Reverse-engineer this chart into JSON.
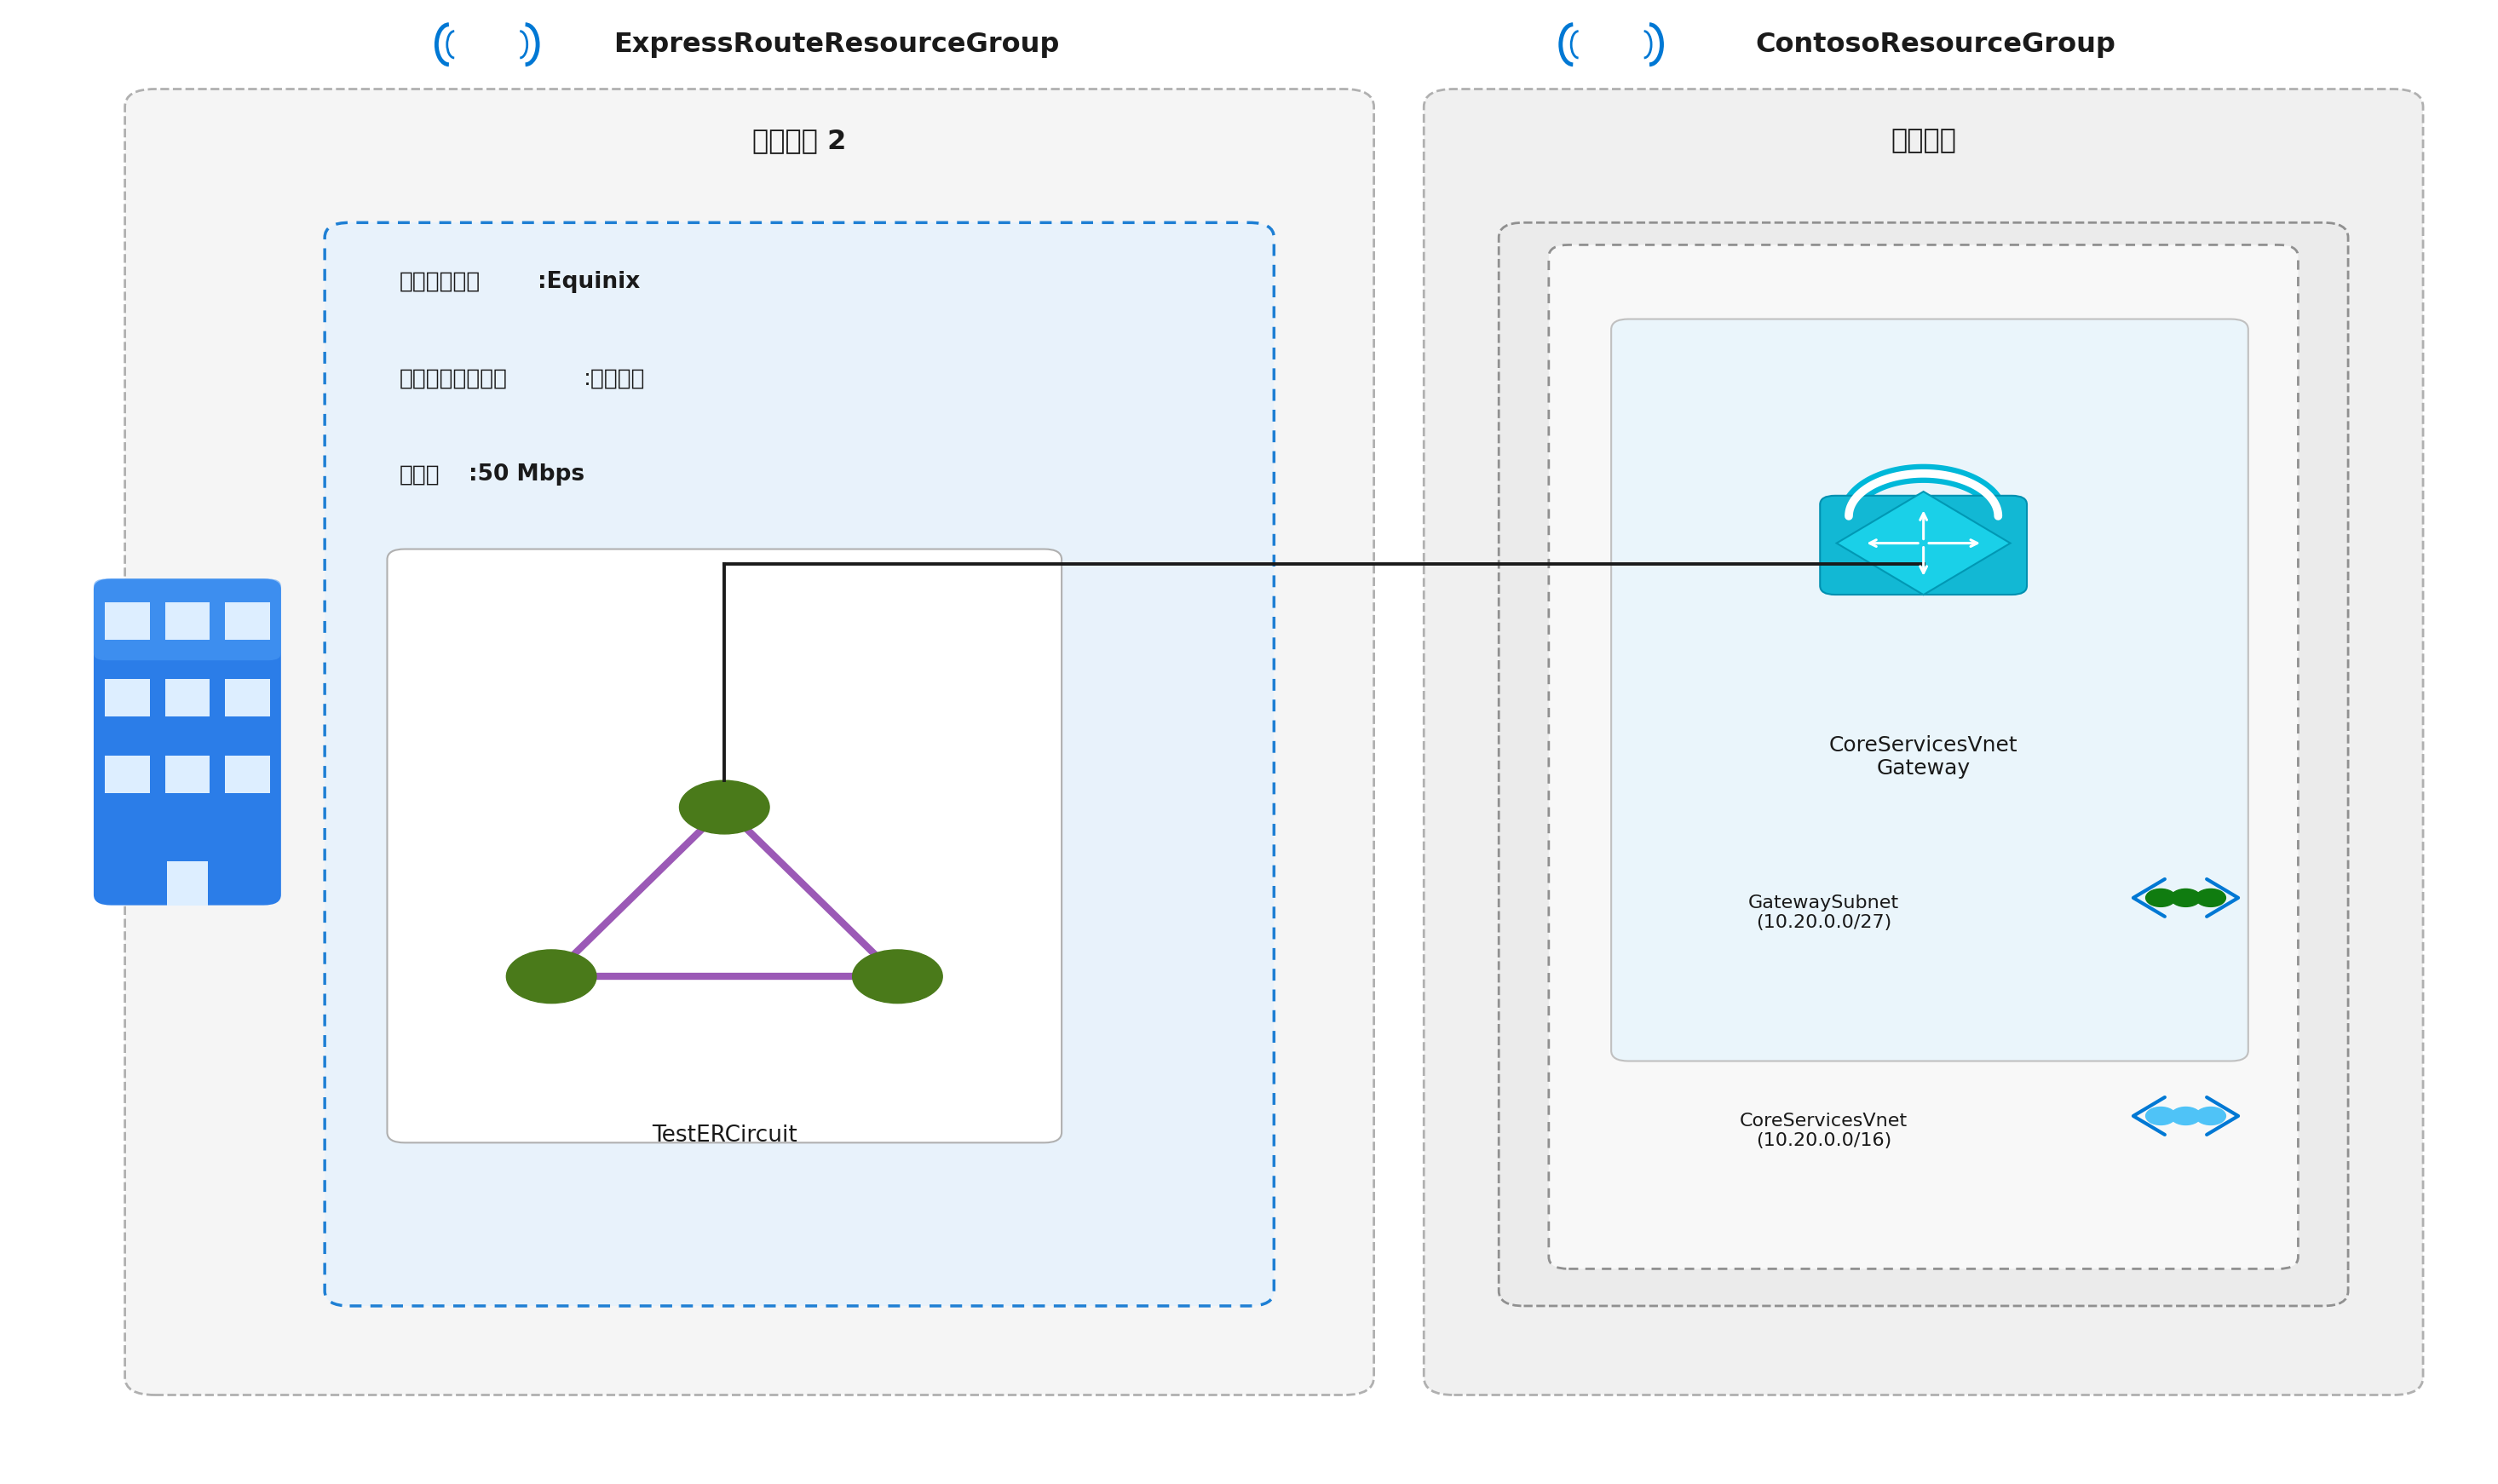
{
  "bg_color": "#ffffff",
  "fig_width": 29.32,
  "fig_height": 17.42,
  "express_rg_label": "ExpressRouteResourceGroup",
  "contoso_rg_label": "ContosoResourceGroup",
  "express_region_label": "米国東部 2",
  "contoso_region_label": "米国東部",
  "provider_line1_normal": "プロバイダー",
  "provider_line1_bold": ":Equinix",
  "provider_line2_normal": "ピアリングの場所",
  "provider_line2_suffix": ":シアトル",
  "provider_line3_normal": "帯域幅",
  "provider_line3_bold": ":50 Mbps",
  "circuit_label": "TestERCircuit",
  "gateway_label": "CoreServicesVnet\nGateway",
  "subnet1_label": "GatewaySubnet\n(10.20.0.0/27)",
  "subnet2_label": "CoreServicesVnet\n(10.20.0.0/16)",
  "colors": {
    "outer_box_bg_left": "#f5f5f5",
    "outer_box_bg_right": "#f0f0f0",
    "outer_box_border": "#b0b0b0",
    "express_dotted_bg": "#e8f2fb",
    "express_dotted_border": "#1e7fd4",
    "contoso_outer_bg": "#ebebeb",
    "contoso_outer_border": "#909090",
    "contoso_inner_bg": "#f8f8f8",
    "contoso_inner_border": "#909090",
    "gateway_inner_bg": "#eaf5fb",
    "gateway_inner_border": "#c0c0c0",
    "circuit_inner_bg": "#ffffff",
    "circuit_inner_border": "#b0b0b0",
    "triangle_edge": "#9b59b6",
    "triangle_node": "#4a7a1a",
    "lock_shackle": "#00b8d9",
    "lock_body_top": "#1ec8e0",
    "lock_body_bot": "#0090b0",
    "building_blue_top": "#3ea8f5",
    "building_blue_bot": "#1a72d4",
    "win_color": "#ddeeff",
    "line_color": "#1a1a1a",
    "text_color": "#1a1a1a",
    "rg_icon_color": "#0078d4",
    "subnet1_arrow": "#0078d4",
    "subnet1_dot": "#107c10",
    "subnet2_arrow": "#0078d4",
    "subnet2_dot": "#4fc3f7"
  }
}
